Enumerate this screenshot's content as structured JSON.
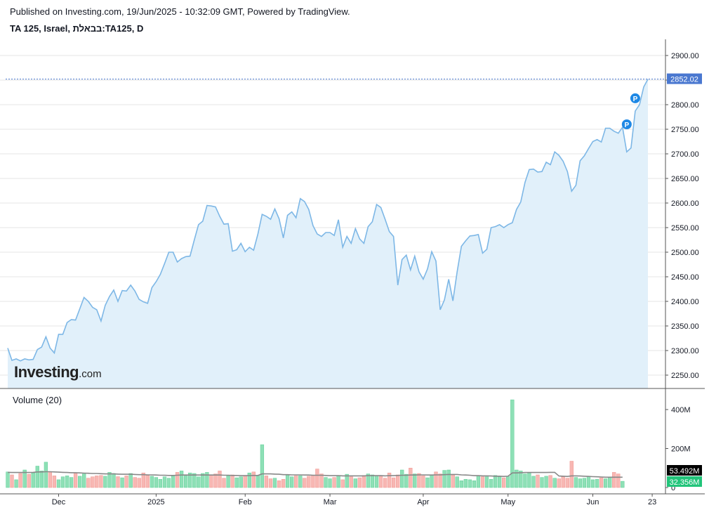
{
  "header": {
    "published": "Published on Investing.com, 19/Jun/2025 - 10:32:09 GMT, Powered by TradingView.",
    "symbol": "TA 125, Israel, בבאלת:TA125, D"
  },
  "logo": {
    "brand": "Investing",
    "domain": ".com"
  },
  "volume_title": "Volume (20)",
  "colors": {
    "line": "#7db7e6",
    "area": "#e1f0fa",
    "last_price_bg": "#4a78d0",
    "vol_up": "#8ee0b6",
    "vol_down": "#f8b7b3",
    "vol_ma": "#888888",
    "vol_ma_label_bg": "#000000",
    "vol_last_bg": "#22c47a",
    "marker": "#1e88e5",
    "grid": "#e6e6e6"
  },
  "chart_data": [
    {
      "type": "area",
      "name": "price",
      "price_ticks": [
        "2900.00",
        "2850.00",
        "2800.00",
        "2750.00",
        "2700.00",
        "2650.00",
        "2600.00",
        "2550.00",
        "2500.00",
        "2450.00",
        "2400.00",
        "2350.00",
        "2300.00",
        "2250.00"
      ],
      "y_range": [
        2225,
        2950
      ],
      "last_price": 2852.02,
      "last_price_label": "2852.02",
      "x_tick_labels": [
        "Dec",
        "2025",
        "Feb",
        "Mar",
        "Apr",
        "May",
        "Jun",
        "23"
      ],
      "x_tick_index": [
        12,
        35,
        56,
        76,
        98,
        118,
        138,
        152
      ],
      "markers": [
        {
          "label": "P",
          "index": 148,
          "value": 2813
        },
        {
          "label": "P",
          "index": 146,
          "value": 2760
        }
      ],
      "values": [
        2305,
        2280,
        2283,
        2279,
        2283,
        2281,
        2282,
        2302,
        2307,
        2328,
        2305,
        2295,
        2333,
        2333,
        2357,
        2363,
        2362,
        2385,
        2408,
        2400,
        2388,
        2383,
        2360,
        2392,
        2410,
        2423,
        2400,
        2422,
        2421,
        2433,
        2421,
        2404,
        2399,
        2396,
        2428,
        2440,
        2455,
        2477,
        2500,
        2500,
        2480,
        2487,
        2491,
        2492,
        2525,
        2556,
        2563,
        2595,
        2594,
        2592,
        2573,
        2557,
        2558,
        2502,
        2505,
        2518,
        2501,
        2510,
        2504,
        2537,
        2577,
        2573,
        2567,
        2588,
        2568,
        2529,
        2575,
        2582,
        2570,
        2609,
        2603,
        2587,
        2554,
        2537,
        2532,
        2540,
        2540,
        2534,
        2566,
        2510,
        2532,
        2518,
        2548,
        2527,
        2518,
        2552,
        2562,
        2597,
        2591,
        2567,
        2542,
        2532,
        2433,
        2485,
        2494,
        2464,
        2492,
        2460,
        2445,
        2466,
        2501,
        2482,
        2383,
        2403,
        2445,
        2401,
        2460,
        2512,
        2523,
        2533,
        2534,
        2536,
        2498,
        2506,
        2550,
        2552,
        2556,
        2550,
        2556,
        2560,
        2587,
        2602,
        2642,
        2668,
        2669,
        2663,
        2664,
        2683,
        2678,
        2704,
        2697,
        2685,
        2664,
        2624,
        2636,
        2686,
        2696,
        2711,
        2725,
        2729,
        2724,
        2752,
        2752,
        2746,
        2742,
        2754,
        2704,
        2712,
        2787,
        2800,
        2836,
        2852
      ]
    },
    {
      "type": "bar",
      "name": "Volume (20)",
      "volume_ticks": [
        "400M",
        "200M",
        "0"
      ],
      "y_range": [
        0,
        460
      ],
      "ma_last_label": "53.492M",
      "last_volume_label": "32.356M",
      "values": [
        80,
        65,
        40,
        72,
        90,
        68,
        75,
        110,
        85,
        130,
        80,
        60,
        40,
        55,
        60,
        52,
        72,
        58,
        70,
        48,
        55,
        60,
        62,
        58,
        78,
        72,
        56,
        50,
        60,
        72,
        52,
        48,
        75,
        62,
        58,
        52,
        42,
        55,
        48,
        62,
        78,
        85,
        60,
        75,
        72,
        55,
        72,
        78,
        65,
        70,
        85,
        48,
        60,
        65,
        50,
        55,
        60,
        75,
        80,
        62,
        220,
        60,
        45,
        48,
        35,
        42,
        65,
        55,
        60,
        60,
        48,
        58,
        62,
        95,
        70,
        52,
        45,
        52,
        62,
        40,
        68,
        55,
        45,
        50,
        62,
        70,
        65,
        62,
        58,
        48,
        75,
        50,
        65,
        90,
        68,
        100,
        70,
        72,
        60,
        50,
        65,
        80,
        70,
        88,
        90,
        65,
        55,
        35,
        42,
        40,
        35,
        62,
        55,
        55,
        42,
        62,
        55,
        50,
        58,
        450,
        90,
        85,
        70,
        75,
        58,
        65,
        52,
        58,
        62,
        48,
        45,
        55,
        48,
        135,
        52,
        45,
        48,
        55,
        40,
        42,
        50,
        45,
        52,
        78,
        70,
        32
      ],
      "ma": [
        78,
        77,
        77,
        77,
        77,
        77,
        78,
        80,
        80,
        81,
        81,
        80,
        79,
        78,
        77,
        76,
        76,
        75,
        74,
        73,
        72,
        72,
        71,
        70,
        70,
        70,
        69,
        68,
        68,
        68,
        67,
        66,
        66,
        65,
        65,
        64,
        63,
        63,
        62,
        62,
        63,
        64,
        64,
        64,
        64,
        64,
        64,
        64,
        64,
        64,
        64,
        63,
        63,
        62,
        62,
        61,
        61,
        61,
        62,
        62,
        70,
        70,
        70,
        69,
        68,
        66,
        66,
        65,
        65,
        65,
        64,
        64,
        63,
        63,
        63,
        62,
        61,
        61,
        61,
        60,
        60,
        60,
        60,
        60,
        60,
        61,
        61,
        61,
        61,
        60,
        61,
        61,
        62,
        63,
        63,
        64,
        64,
        65,
        65,
        64,
        64,
        65,
        65,
        66,
        67,
        67,
        67,
        65,
        64,
        63,
        61,
        61,
        60,
        60,
        59,
        58,
        58,
        57,
        58,
        75,
        75,
        76,
        77,
        77,
        77,
        77,
        77,
        77,
        78,
        78,
        59,
        58,
        57,
        60,
        60,
        59,
        58,
        57,
        56,
        55,
        54,
        53,
        53,
        53,
        53,
        53
      ]
    }
  ]
}
